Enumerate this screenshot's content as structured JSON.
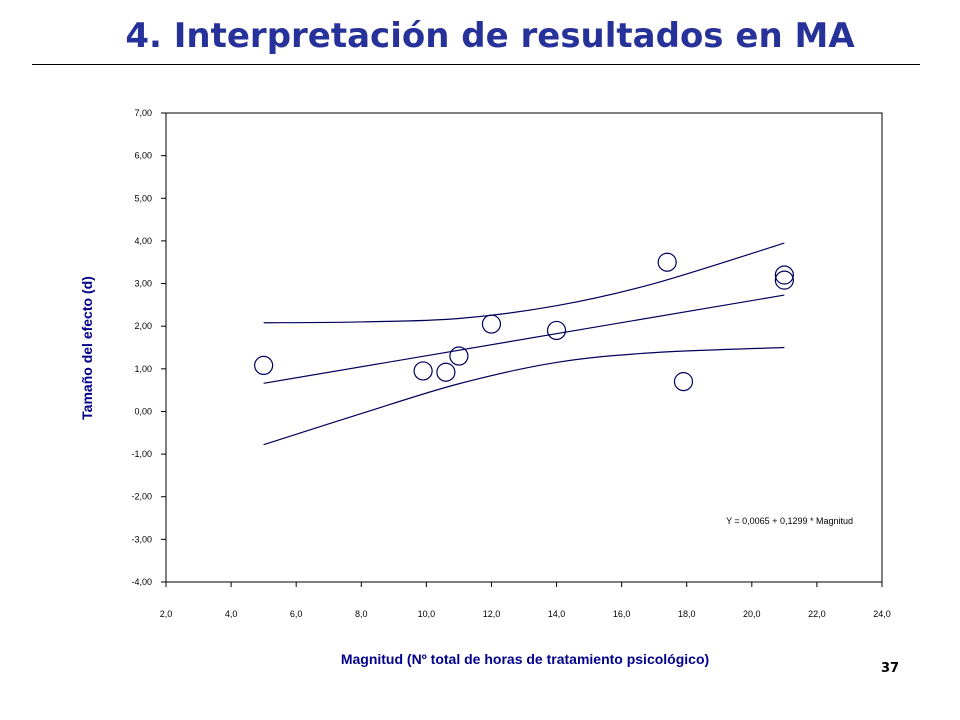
{
  "slide": {
    "title": "4. Interpretación de resultados en MA",
    "page_number": "37"
  },
  "colors": {
    "title": "#27319a",
    "axis_label": "#00008b",
    "lines": "#00005a",
    "axis": "#000000"
  },
  "chart_data": {
    "type": "scatter",
    "xlabel": "Magnitud (Nº total de horas de tratamiento psicológico)",
    "ylabel": "Tamaño del efecto (d)",
    "xlim": [
      2,
      24
    ],
    "ylim": [
      -4,
      7
    ],
    "x_ticks": [
      "2,0",
      "4,0",
      "6,0",
      "8,0",
      "10,0",
      "12,0",
      "14,0",
      "16,0",
      "18,0",
      "20,0",
      "22,0",
      "24,0"
    ],
    "y_ticks": [
      "-4,00",
      "-3,00",
      "-2,00",
      "-1,00",
      "0,00",
      "1,00",
      "2,00",
      "3,00",
      "4,00",
      "5,00",
      "6,00",
      "7,00"
    ],
    "grid": false,
    "series": [
      {
        "marker": "open-circle",
        "points": [
          {
            "x": 5.0,
            "y": 1.08
          },
          {
            "x": 9.9,
            "y": 0.95
          },
          {
            "x": 10.6,
            "y": 0.92
          },
          {
            "x": 11.0,
            "y": 1.3
          },
          {
            "x": 12.0,
            "y": 2.05
          },
          {
            "x": 14.0,
            "y": 1.9
          },
          {
            "x": 17.4,
            "y": 3.5
          },
          {
            "x": 17.9,
            "y": 0.7
          },
          {
            "x": 21.0,
            "y": 3.2
          },
          {
            "x": 21.0,
            "y": 3.08
          }
        ]
      }
    ],
    "regression": {
      "equation": "Y = 0,0065 + 0,1299 * Magnitud",
      "fit": [
        [
          5.0,
          0.66
        ],
        [
          21.0,
          2.73
        ]
      ],
      "upper_ci": [
        [
          5.0,
          2.08
        ],
        [
          8.0,
          2.1
        ],
        [
          11.0,
          2.18
        ],
        [
          14.0,
          2.48
        ],
        [
          17.0,
          3.0
        ],
        [
          21.0,
          3.95
        ]
      ],
      "lower_ci": [
        [
          5.0,
          -0.78
        ],
        [
          8.0,
          -0.05
        ],
        [
          11.0,
          0.65
        ],
        [
          14.0,
          1.15
        ],
        [
          17.0,
          1.38
        ],
        [
          21.0,
          1.5
        ]
      ]
    }
  }
}
